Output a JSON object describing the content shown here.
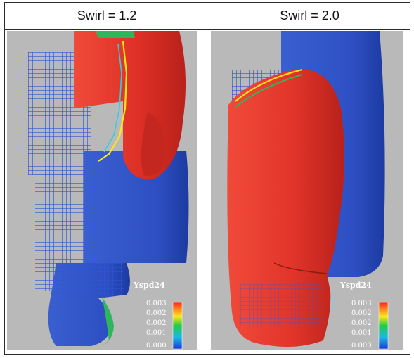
{
  "columns": [
    {
      "header": "Swirl = 1.2"
    },
    {
      "header": "Swirl = 2.0"
    }
  ],
  "colorbar": {
    "variable": "Yspd24",
    "ticks": [
      "0.003",
      "0.002",
      "0.002",
      "0.001",
      "0.000"
    ]
  },
  "colors": {
    "background": "#b9b9b9",
    "blue": "#2a4fc4",
    "red": "#e33a30",
    "grid": "#2e55d6"
  }
}
